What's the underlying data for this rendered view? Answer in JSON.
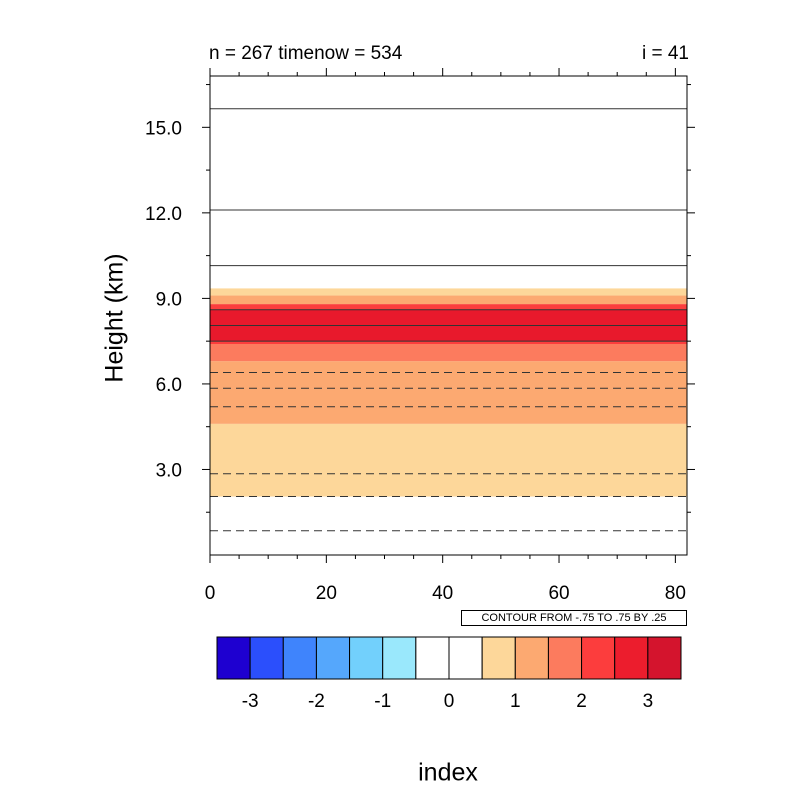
{
  "title_left": "n = 267 timenow = 534",
  "title_right": "i = 41",
  "contour_info": "CONTOUR FROM -.75 TO .75 BY .25",
  "chart_data": {
    "type": "heatmap",
    "ylabel": "Height (km)",
    "xlabel": "index",
    "xlim": [
      0,
      82
    ],
    "ylim": [
      0,
      16.8
    ],
    "x_ticks": [
      0,
      20,
      40,
      60,
      80
    ],
    "x_tick_labels": [
      "0",
      "20",
      "40",
      "60",
      "80"
    ],
    "y_ticks": [
      3.0,
      6.0,
      9.0,
      12.0,
      15.0
    ],
    "y_tick_labels": [
      "3.0",
      "6.0",
      "9.0",
      "12.0",
      "15.0"
    ],
    "bands": [
      {
        "y0": 2.05,
        "y1": 4.6,
        "color": "#fdd79a"
      },
      {
        "y0": 4.6,
        "y1": 6.8,
        "color": "#fca971"
      },
      {
        "y0": 6.8,
        "y1": 7.4,
        "color": "#fc7b5e"
      },
      {
        "y0": 7.4,
        "y1": 7.5,
        "color": "#fc3d3d"
      },
      {
        "y0": 7.5,
        "y1": 8.6,
        "color": "#e8192c"
      },
      {
        "y0": 8.6,
        "y1": 8.8,
        "color": "#fc3d3d"
      },
      {
        "y0": 8.8,
        "y1": 9.1,
        "color": "#fca971"
      },
      {
        "y0": 9.1,
        "y1": 9.35,
        "color": "#fdd79a"
      }
    ],
    "contours": [
      {
        "y": 0.85,
        "dashed": true
      },
      {
        "y": 2.05,
        "dashed": true
      },
      {
        "y": 2.85,
        "dashed": true
      },
      {
        "y": 5.2,
        "dashed": true
      },
      {
        "y": 5.85,
        "dashed": true
      },
      {
        "y": 6.4,
        "dashed": true
      },
      {
        "y": 7.5,
        "dashed": false
      },
      {
        "y": 8.05,
        "dashed": false
      },
      {
        "y": 8.6,
        "dashed": false
      },
      {
        "y": 10.15,
        "dashed": false
      },
      {
        "y": 12.1,
        "dashed": false
      },
      {
        "y": 15.65,
        "dashed": false
      }
    ],
    "colorbar": {
      "colors": [
        "#1e00d0",
        "#2b4ffc",
        "#3f84fc",
        "#55a7fc",
        "#72d0fc",
        "#9ae8fc",
        "#ffffff",
        "#ffffff",
        "#fdd79a",
        "#fca971",
        "#fc7b5e",
        "#fc3d3d",
        "#ec1d2d",
        "#d4142d"
      ],
      "labels": [
        "-3",
        "-2",
        "-1",
        "0",
        "1",
        "2",
        "3"
      ]
    }
  }
}
